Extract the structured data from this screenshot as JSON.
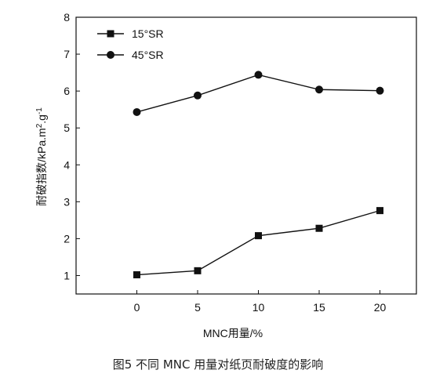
{
  "chart_data": {
    "type": "line",
    "x": [
      0,
      5,
      10,
      15,
      20
    ],
    "series": [
      {
        "name": "15°SR",
        "marker": "square",
        "values": [
          1.02,
          1.13,
          2.08,
          2.28,
          2.76
        ]
      },
      {
        "name": "45°SR",
        "marker": "circle",
        "values": [
          5.43,
          5.88,
          6.44,
          6.04,
          6.01
        ]
      }
    ],
    "title": "",
    "xlabel": "MNC用量/%",
    "ylabel": "耐破指数/kPa.m2.g-1",
    "xlim": [
      -5,
      23
    ],
    "ylim": [
      0.5,
      8
    ],
    "xticks": [
      0,
      5,
      10,
      15,
      20
    ],
    "yticks": [
      1,
      2,
      3,
      4,
      5,
      6,
      7,
      8
    ],
    "grid": false,
    "legend_position": "top-left",
    "line_color": "#111111"
  },
  "caption": "图5   不同 MNC 用量对纸页耐破度的影响"
}
